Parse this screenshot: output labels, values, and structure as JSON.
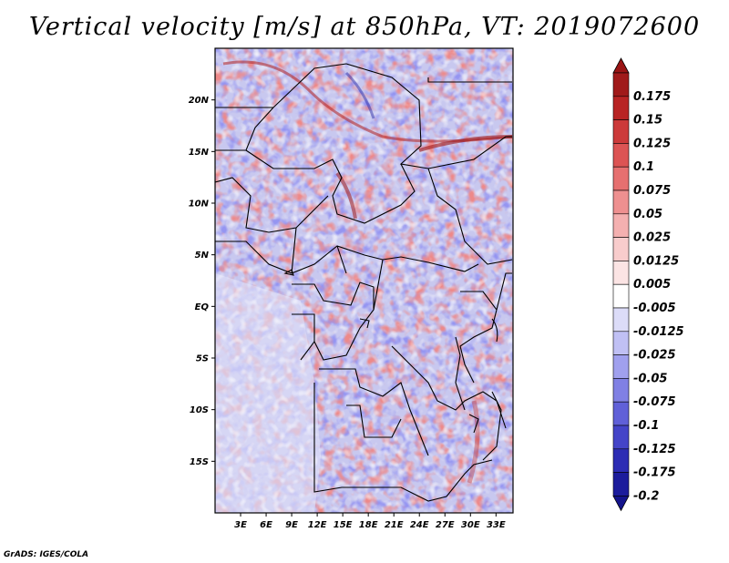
{
  "title": "Vertical velocity [m/s] at 850hPa, VT: 2019072600",
  "credit": "GrADS: IGES/COLA",
  "map": {
    "lat_range": [
      -20,
      25
    ],
    "lon_range": [
      0,
      35
    ],
    "lat_ticks": [
      {
        "lat": 20,
        "label": "20N"
      },
      {
        "lat": 15,
        "label": "15N"
      },
      {
        "lat": 10,
        "label": "10N"
      },
      {
        "lat": 5,
        "label": "5N"
      },
      {
        "lat": 0,
        "label": "EQ"
      },
      {
        "lat": -5,
        "label": "5S"
      },
      {
        "lat": -10,
        "label": "10S"
      },
      {
        "lat": -15,
        "label": "15S"
      }
    ],
    "lon_ticks": [
      {
        "lon": 3,
        "label": "3E"
      },
      {
        "lon": 6,
        "label": "6E"
      },
      {
        "lon": 9,
        "label": "9E"
      },
      {
        "lon": 12,
        "label": "12E"
      },
      {
        "lon": 15,
        "label": "15E"
      },
      {
        "lon": 18,
        "label": "18E"
      },
      {
        "lon": 21,
        "label": "21E"
      },
      {
        "lon": 24,
        "label": "24E"
      },
      {
        "lon": 27,
        "label": "27E"
      },
      {
        "lon": 30,
        "label": "30E"
      },
      {
        "lon": 33,
        "label": "33E"
      }
    ]
  },
  "colorbar": {
    "levels": [
      {
        "label": "0.175",
        "color": "#a01a1a"
      },
      {
        "label": "0.15",
        "color": "#b82424"
      },
      {
        "label": "0.125",
        "color": "#cc3a3a"
      },
      {
        "label": "0.1",
        "color": "#dc5454"
      },
      {
        "label": "0.075",
        "color": "#e67070"
      },
      {
        "label": "0.05",
        "color": "#ee9090"
      },
      {
        "label": "0.025",
        "color": "#f4b0b0"
      },
      {
        "label": "0.0125",
        "color": "#f8cccc"
      },
      {
        "label": "0.005",
        "color": "#fbe4e4"
      },
      {
        "label": "-0.005",
        "color": "#ffffff"
      },
      {
        "label": "-0.0125",
        "color": "#dcdcf8"
      },
      {
        "label": "-0.025",
        "color": "#c0c0f4"
      },
      {
        "label": "-0.05",
        "color": "#a0a0ee"
      },
      {
        "label": "-0.075",
        "color": "#8080e4"
      },
      {
        "label": "-0.1",
        "color": "#6060d8"
      },
      {
        "label": "-0.125",
        "color": "#4444c8"
      },
      {
        "label": "-0.175",
        "color": "#2c2cb4"
      },
      {
        "label": "-0.2",
        "color": "#1c1c9c"
      }
    ],
    "top_color": "#9a1414",
    "bottom_color": "#14148c"
  }
}
